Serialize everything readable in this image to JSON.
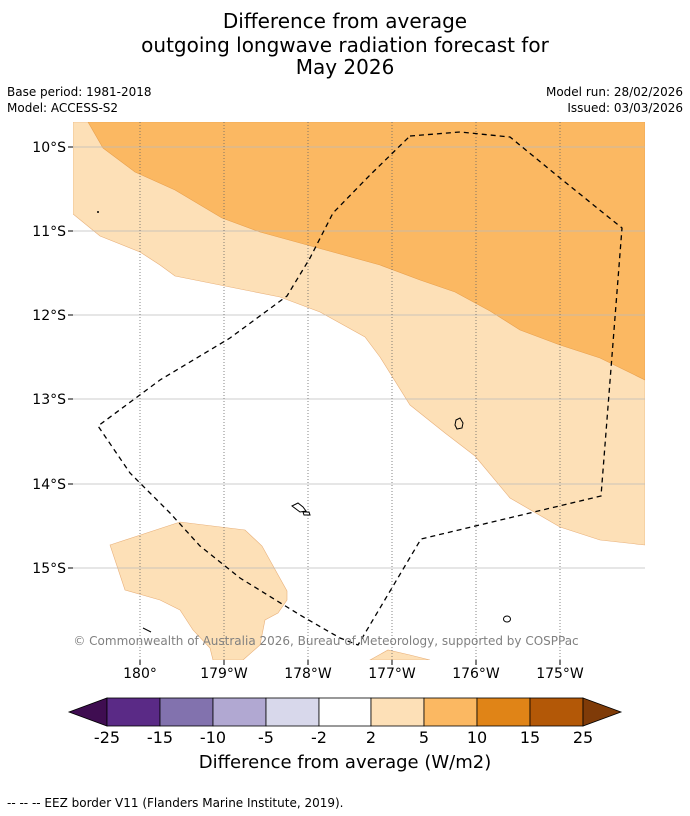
{
  "title": {
    "line1": "Difference from average",
    "line2": "outgoing longwave radiation forecast for",
    "line3": "May 2026"
  },
  "meta": {
    "base_period": "Base period: 1981-2018",
    "model": "Model: ACCESS-S2",
    "model_run": "Model run: 28/02/2026",
    "issued": "Issued: 03/03/2026"
  },
  "map": {
    "lat_labels": [
      "10°S",
      "11°S",
      "12°S",
      "13°S",
      "14°S",
      "15°S"
    ],
    "lon_labels": [
      "180°",
      "179°W",
      "178°W",
      "177°W",
      "176°W",
      "175°W"
    ],
    "copyright": "© Commonwealth of Australia 2026, Bureau of Meteorology, supported by COSPPac",
    "colors": {
      "light_orange": "#fde0b7",
      "mid_orange": "#fbb862",
      "grid": "#bbbbbb"
    }
  },
  "colorbar": {
    "title": "Difference from average (W/m2)",
    "tick_labels": [
      "-25",
      "-15",
      "-10",
      "-5",
      "-2",
      "2",
      "5",
      "10",
      "15",
      "25"
    ],
    "colors": [
      "#3f0d51",
      "#5a2a86",
      "#8272ae",
      "#b1a8d2",
      "#d8d8eb",
      "#ffffff",
      "#fde0b7",
      "#fbb862",
      "#e08417",
      "#b35807",
      "#7f3b08"
    ]
  },
  "legend": {
    "eez_note": "-- -- -- EEZ border V11 (Flanders Marine Institute, 2019)."
  }
}
